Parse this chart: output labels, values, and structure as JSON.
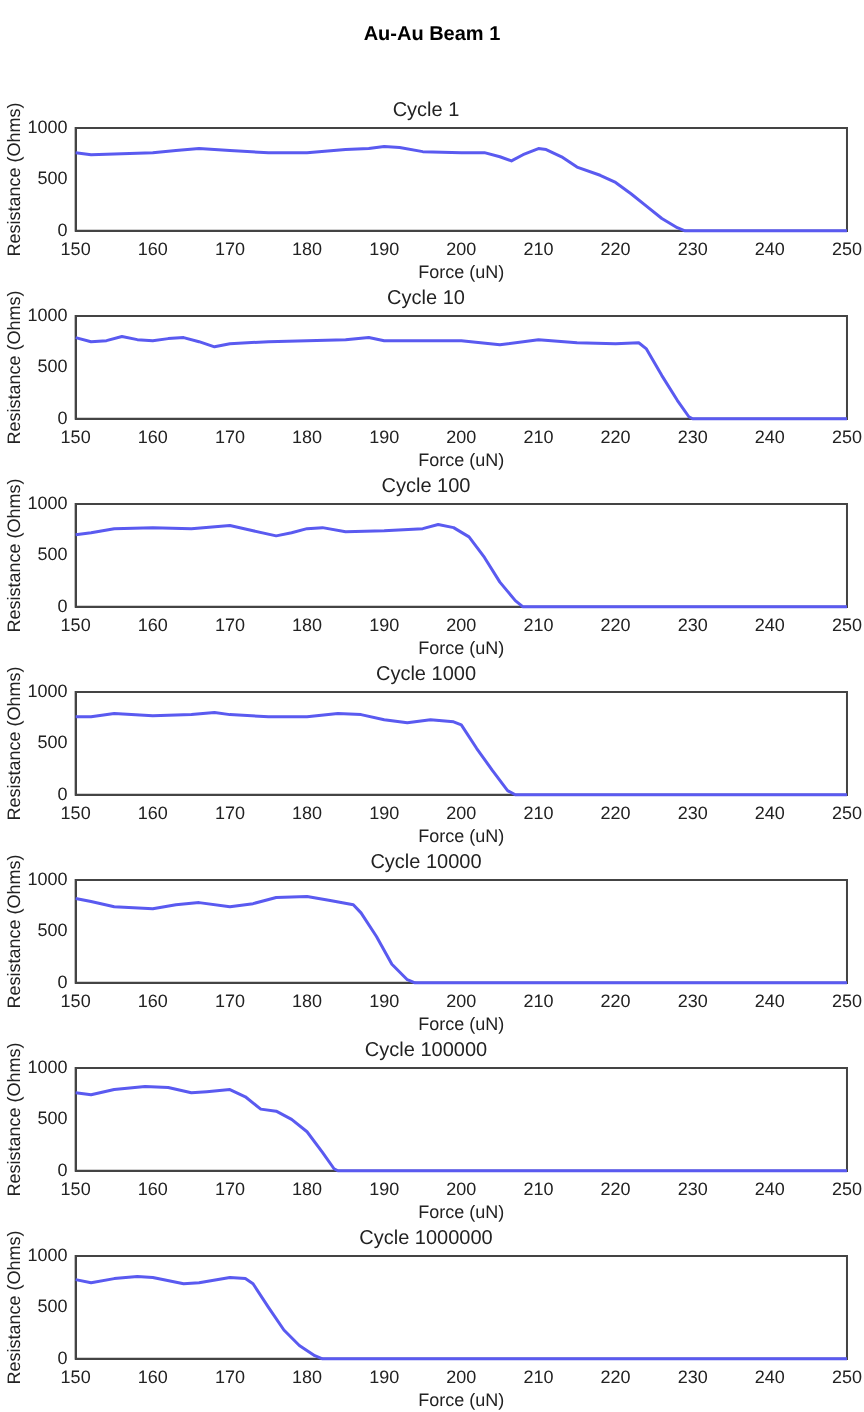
{
  "chart_data": [
    {
      "type": "line",
      "title": "Au-Au Beam 1",
      "subtitle": "Cycle 1",
      "xlabel": "Force (uN)",
      "ylabel": "Resistance (Ohms)",
      "xlim": [
        150,
        250
      ],
      "xticks": [
        150,
        160,
        170,
        180,
        190,
        200,
        210,
        220,
        230,
        240,
        250
      ],
      "ylim": [
        0,
        1000
      ],
      "yticks": [
        0,
        500,
        1000
      ],
      "grid": false,
      "legend": false,
      "marker": "none",
      "line_style": "solid",
      "x": [
        150,
        152,
        156,
        160,
        163,
        166,
        170,
        175,
        180,
        185,
        188,
        190,
        192,
        195,
        200,
        203,
        205,
        206.5,
        208,
        210,
        211,
        213,
        215,
        218,
        220,
        222,
        224,
        226,
        228,
        229,
        250
      ],
      "series": [
        {
          "color": "#5a5af0",
          "values": [
            760,
            740,
            750,
            760,
            780,
            800,
            780,
            760,
            760,
            790,
            800,
            820,
            810,
            770,
            760,
            760,
            720,
            680,
            740,
            800,
            790,
            720,
            620,
            540,
            470,
            360,
            240,
            120,
            30,
            0,
            0
          ]
        }
      ]
    },
    {
      "type": "line",
      "title": "Cycle 10",
      "xlabel": "Force (uN)",
      "ylabel": "Resistance (Ohms)",
      "xlim": [
        150,
        250
      ],
      "xticks": [
        150,
        160,
        170,
        180,
        190,
        200,
        210,
        220,
        230,
        240,
        250
      ],
      "ylim": [
        0,
        1000
      ],
      "yticks": [
        0,
        500,
        1000
      ],
      "grid": false,
      "legend": false,
      "marker": "none",
      "line_style": "solid",
      "x": [
        150,
        152,
        154,
        156,
        158,
        160,
        162,
        164,
        166,
        168,
        170,
        175,
        180,
        185,
        188,
        190,
        195,
        200,
        205,
        210,
        215,
        220,
        223,
        224,
        226,
        228,
        229.5,
        230,
        250
      ],
      "series": [
        {
          "color": "#5a5af0",
          "values": [
            790,
            750,
            760,
            800,
            770,
            760,
            780,
            790,
            750,
            700,
            730,
            750,
            760,
            770,
            790,
            760,
            760,
            760,
            720,
            770,
            740,
            730,
            740,
            680,
            420,
            180,
            20,
            0,
            0
          ]
        }
      ]
    },
    {
      "type": "line",
      "title": "Cycle 100",
      "xlabel": "Force (uN)",
      "ylabel": "Resistance (Ohms)",
      "xlim": [
        150,
        250
      ],
      "xticks": [
        150,
        160,
        170,
        180,
        190,
        200,
        210,
        220,
        230,
        240,
        250
      ],
      "ylim": [
        0,
        1000
      ],
      "yticks": [
        0,
        500,
        1000
      ],
      "grid": false,
      "legend": false,
      "marker": "none",
      "line_style": "solid",
      "x": [
        150,
        152,
        155,
        160,
        165,
        170,
        173,
        176,
        178,
        180,
        182,
        185,
        190,
        195,
        197,
        199,
        201,
        203,
        205,
        207,
        208,
        250
      ],
      "series": [
        {
          "color": "#5a5af0",
          "values": [
            700,
            720,
            760,
            770,
            760,
            790,
            740,
            690,
            720,
            760,
            770,
            730,
            740,
            760,
            800,
            770,
            680,
            480,
            240,
            60,
            0,
            0
          ]
        }
      ]
    },
    {
      "type": "line",
      "title": "Cycle 1000",
      "xlabel": "Force (uN)",
      "ylabel": "Resistance (Ohms)",
      "xlim": [
        150,
        250
      ],
      "xticks": [
        150,
        160,
        170,
        180,
        190,
        200,
        210,
        220,
        230,
        240,
        250
      ],
      "ylim": [
        0,
        1000
      ],
      "yticks": [
        0,
        500,
        1000
      ],
      "grid": false,
      "legend": false,
      "marker": "none",
      "line_style": "solid",
      "x": [
        150,
        152,
        155,
        160,
        165,
        168,
        170,
        175,
        180,
        184,
        187,
        190,
        193,
        196,
        199,
        200,
        202,
        204,
        206,
        207,
        250
      ],
      "series": [
        {
          "color": "#5a5af0",
          "values": [
            760,
            760,
            790,
            770,
            780,
            800,
            780,
            760,
            760,
            790,
            780,
            730,
            700,
            730,
            710,
            680,
            450,
            240,
            40,
            0,
            0
          ]
        }
      ]
    },
    {
      "type": "line",
      "title": "Cycle 10000",
      "xlabel": "Force (uN)",
      "ylabel": "Resistance (Ohms)",
      "xlim": [
        150,
        250
      ],
      "xticks": [
        150,
        160,
        170,
        180,
        190,
        200,
        210,
        220,
        230,
        240,
        250
      ],
      "ylim": [
        0,
        1000
      ],
      "yticks": [
        0,
        500,
        1000
      ],
      "grid": false,
      "legend": false,
      "marker": "none",
      "line_style": "solid",
      "x": [
        150,
        152,
        155,
        160,
        163,
        166,
        170,
        173,
        176,
        180,
        183,
        186,
        187,
        189,
        191,
        193,
        194,
        250
      ],
      "series": [
        {
          "color": "#5a5af0",
          "values": [
            820,
            790,
            740,
            720,
            760,
            780,
            740,
            770,
            830,
            840,
            800,
            760,
            680,
            450,
            180,
            30,
            0,
            0
          ]
        }
      ]
    },
    {
      "type": "line",
      "title": "Cycle 100000",
      "xlabel": "Force (uN)",
      "ylabel": "Resistance (Ohms)",
      "xlim": [
        150,
        250
      ],
      "xticks": [
        150,
        160,
        170,
        180,
        190,
        200,
        210,
        220,
        230,
        240,
        250
      ],
      "ylim": [
        0,
        1000
      ],
      "yticks": [
        0,
        500,
        1000
      ],
      "grid": false,
      "legend": false,
      "marker": "none",
      "line_style": "solid",
      "x": [
        150,
        152,
        155,
        159,
        162,
        165,
        167,
        170,
        172,
        174,
        176,
        178,
        180,
        182,
        183.5,
        184,
        250
      ],
      "series": [
        {
          "color": "#5a5af0",
          "values": [
            760,
            740,
            790,
            820,
            810,
            760,
            770,
            790,
            720,
            600,
            580,
            500,
            380,
            180,
            20,
            0,
            0
          ]
        }
      ]
    },
    {
      "type": "line",
      "title": "Cycle 1000000",
      "xlabel": "Force (uN)",
      "ylabel": "Resistance (Ohms)",
      "xlim": [
        150,
        250
      ],
      "xticks": [
        150,
        160,
        170,
        180,
        190,
        200,
        210,
        220,
        230,
        240,
        250
      ],
      "ylim": [
        0,
        1000
      ],
      "yticks": [
        0,
        500,
        1000
      ],
      "grid": false,
      "legend": false,
      "marker": "none",
      "line_style": "solid",
      "x": [
        150,
        152,
        155,
        158,
        160,
        164,
        166,
        170,
        172,
        173,
        175,
        177,
        179,
        181,
        182,
        250
      ],
      "series": [
        {
          "color": "#5a5af0",
          "values": [
            770,
            740,
            780,
            800,
            790,
            730,
            740,
            790,
            780,
            730,
            500,
            280,
            130,
            30,
            0,
            0
          ]
        }
      ]
    }
  ]
}
